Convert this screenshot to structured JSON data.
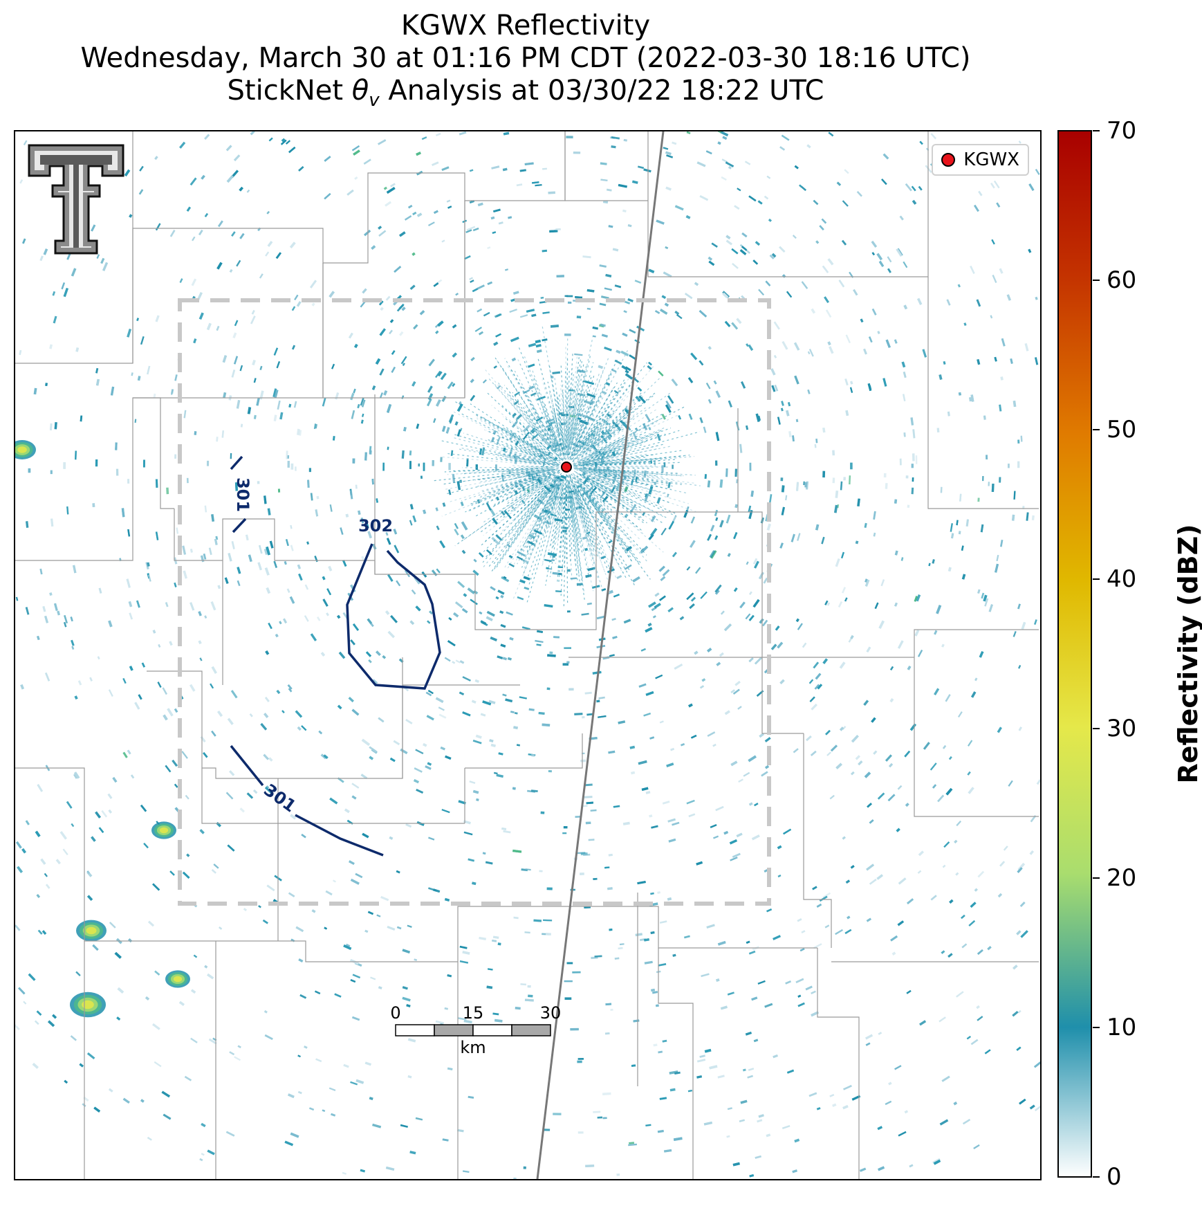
{
  "title": {
    "line1": "KGWX Reflectivity",
    "line2": "Wednesday, March 30 at 01:16 PM CDT (2022-03-30 18:16 UTC)",
    "line3_prefix": "StickNet ",
    "line3_symbol": "θ",
    "line3_sub": "v",
    "line3_suffix": " Analysis at 03/30/22 18:22 UTC"
  },
  "legend": {
    "label": "KGWX",
    "marker_color": "#e8141c"
  },
  "colorbar": {
    "label": "Reflectivity (dBZ)",
    "ticks": [
      "0",
      "10",
      "20",
      "30",
      "40",
      "50",
      "60",
      "70"
    ],
    "range": [
      0,
      70
    ],
    "colors": [
      "#ffffff",
      "#1f8fab",
      "#4fba8a",
      "#a9dd6e",
      "#e5e84a",
      "#e0b800",
      "#e07b00",
      "#c43300",
      "#a80000"
    ]
  },
  "contours": {
    "color": "#0d2a6b",
    "labels": [
      "301",
      "302",
      "301"
    ]
  },
  "scalebar": {
    "ticks": [
      "0",
      "15",
      "30"
    ],
    "unit": "km"
  },
  "analysis_domain": {
    "style": "dashed",
    "color": "#c8c8c8"
  },
  "radar_site": {
    "name": "KGWX",
    "marker_color": "#e8141c"
  },
  "logo": {
    "icon": "texas-tech-double-t-logo"
  }
}
